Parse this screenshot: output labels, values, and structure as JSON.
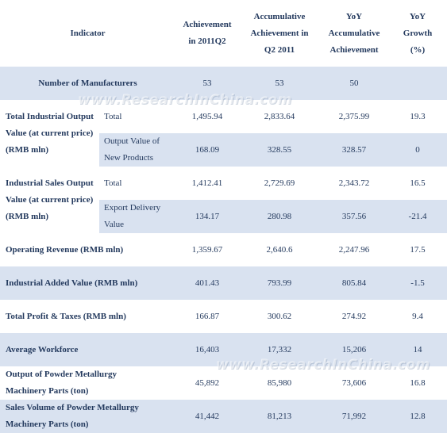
{
  "headers": {
    "indicator": "Indicator",
    "achievement": "Achievement in 2011Q2",
    "accumulative": "Accumulative Achievement in Q2 2011",
    "yoy_accumulative": "YoY Accumulative Achievement",
    "yoy_growth": "YoY Growth (%)"
  },
  "rows": {
    "manufacturers": {
      "label": "Number of Manufacturers",
      "v1": "53",
      "v2": "53",
      "v3": "50",
      "v4": ""
    },
    "total_output": {
      "label": "Total Industrial Output Value (at current price) (RMB mln)",
      "total": {
        "label": "Total",
        "v1": "1,495.94",
        "v2": "2,833.64",
        "v3": "2,375.99",
        "v4": "19.3"
      },
      "new_products": {
        "label": "Output Value of New Products",
        "v1": "168.09",
        "v2": "328.55",
        "v3": "328.57",
        "v4": "0"
      }
    },
    "sales_output": {
      "label": "Industrial Sales Output Value (at current price) (RMB mln)",
      "total": {
        "label": "Total",
        "v1": "1,412.41",
        "v2": "2,729.69",
        "v3": "2,343.72",
        "v4": "16.5"
      },
      "export": {
        "label": "Export Delivery Value",
        "v1": "134.17",
        "v2": "280.98",
        "v3": "357.56",
        "v4": "-21.4"
      }
    },
    "operating_revenue": {
      "label": "Operating Revenue (RMB mln)",
      "v1": "1,359.67",
      "v2": "2,640.6",
      "v3": "2,247.96",
      "v4": "17.5"
    },
    "added_value": {
      "label": "Industrial Added Value (RMB mln)",
      "v1": "401.43",
      "v2": "793.99",
      "v3": "805.84",
      "v4": "-1.5"
    },
    "profit_taxes": {
      "label": "Total Profit & Taxes (RMB mln)",
      "v1": "166.87",
      "v2": "300.62",
      "v3": "274.92",
      "v4": "9.4"
    },
    "workforce": {
      "label": "Average Workforce",
      "v1": "16,403",
      "v2": "17,332",
      "v3": "15,206",
      "v4": "14"
    },
    "output_parts": {
      "label": "Output of Powder Metallurgy Machinery Parts (ton)",
      "v1": "45,892",
      "v2": "85,980",
      "v3": "73,606",
      "v4": "16.8"
    },
    "sales_parts": {
      "label": "Sales Volume of Powder Metallurgy Machinery Parts (ton)",
      "v1": "41,442",
      "v2": "81,213",
      "v3": "71,992",
      "v4": "12.8"
    }
  },
  "watermark": "www.ResearchInChina.com"
}
